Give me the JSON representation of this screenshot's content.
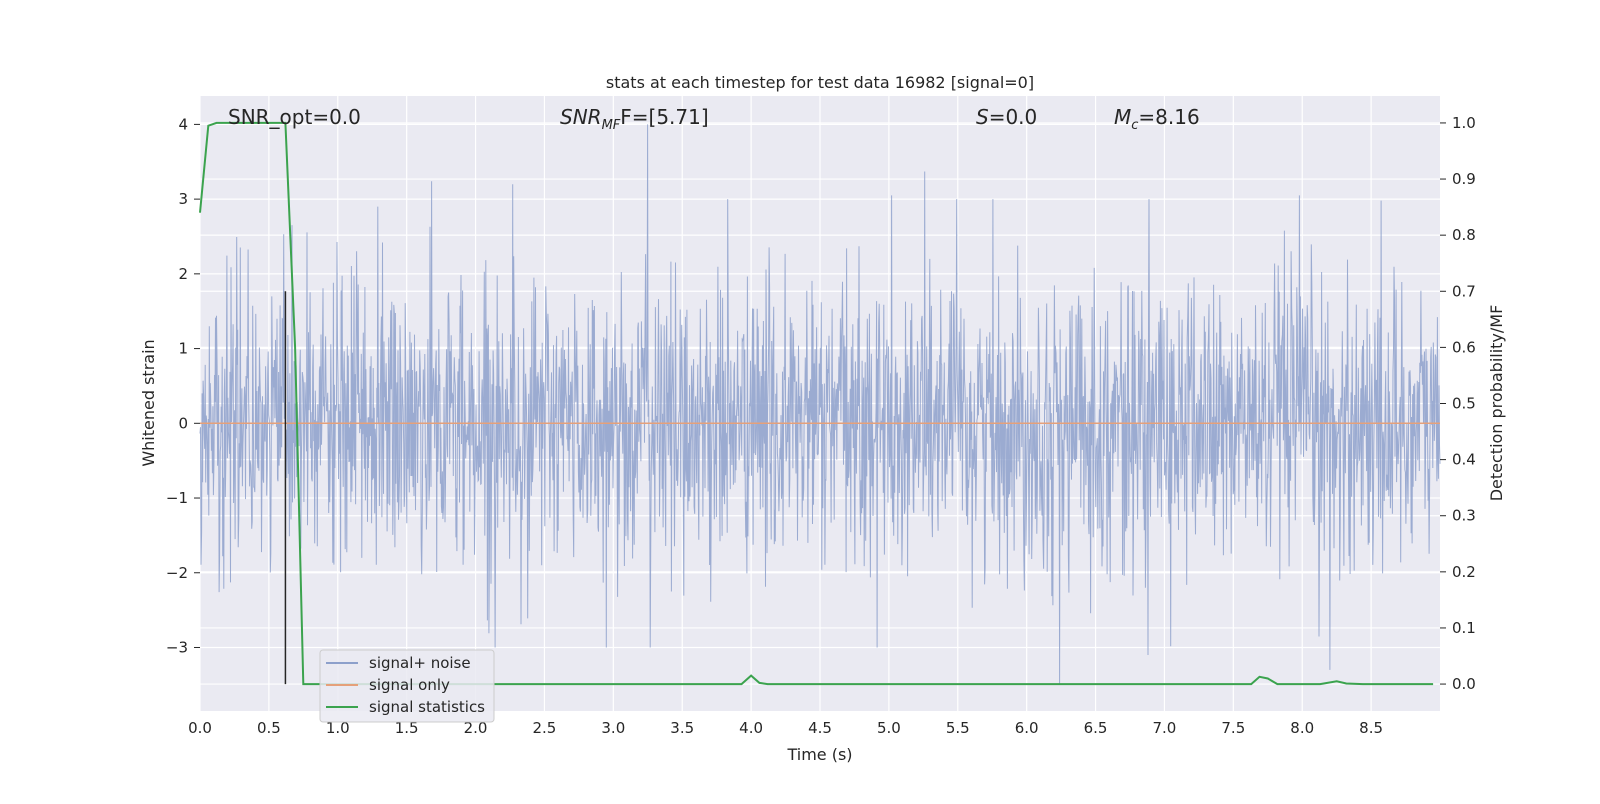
{
  "chart_data": {
    "type": "line",
    "title": "stats at each timestep for test data 16982 [signal=0]",
    "xlabel": "Time (s)",
    "ylabel_left": "Whitened strain",
    "ylabel_right": "Detection probability/MF",
    "xlim": [
      0.0,
      9.0
    ],
    "ylim_left": [
      -3.85,
      4.38
    ],
    "ylim_right": [
      -0.048,
      1.048
    ],
    "grid": true,
    "legend_position": "bottom-left",
    "x_ticks": [
      "0.0",
      "0.5",
      "1.0",
      "1.5",
      "2.0",
      "2.5",
      "3.0",
      "3.5",
      "4.0",
      "4.5",
      "5.0",
      "5.5",
      "6.0",
      "6.5",
      "7.0",
      "7.5",
      "8.0",
      "8.5"
    ],
    "y_ticks_left": [
      "4",
      "3",
      "2",
      "1",
      "0",
      "−1",
      "−2",
      "−3"
    ],
    "y_ticks_right": [
      "1.0",
      "0.9",
      "0.8",
      "0.7",
      "0.6",
      "0.5",
      "0.4",
      "0.3",
      "0.2",
      "0.1",
      "0.0"
    ],
    "annotations": {
      "snr_opt": "SNR_opt=0.0",
      "snr_mf_main": "SNR",
      "snr_mf_sub": "MF",
      "snr_mf_rest": "F=[5.71]",
      "s_main": "S",
      "s_rest": "=0.0",
      "mc_main": "M",
      "mc_sub": "c",
      "mc_rest": "=8.16"
    },
    "marker_line_x": 0.62,
    "series": [
      {
        "name": "signal+ noise",
        "axis": "left",
        "color": "#8da0cb",
        "description": "whitened strain noise, roughly gaussian with sigma about 1, spanning about -3.4 to 4.0",
        "peaks": [
          [
            3.25,
            4.0
          ],
          [
            5.26,
            3.37
          ],
          [
            1.68,
            3.24
          ],
          [
            2.27,
            3.2
          ],
          [
            5.02,
            3.05
          ],
          [
            7.98,
            3.05
          ],
          [
            1.29,
            2.9
          ],
          [
            6.24,
            -3.5
          ],
          [
            8.2,
            -3.3
          ],
          [
            6.88,
            -3.1
          ],
          [
            2.95,
            -3.0
          ]
        ]
      },
      {
        "name": "signal only",
        "axis": "left",
        "color": "#e5a07a",
        "x": [
          0.0,
          9.0
        ],
        "y": [
          0.0,
          0.0
        ]
      },
      {
        "name": "signal statistics",
        "axis": "right",
        "color": "#3ba34e",
        "x": [
          0.0,
          0.06,
          0.12,
          0.62,
          0.69,
          0.75,
          3.93,
          4.0,
          4.06,
          4.12,
          7.56,
          7.63,
          7.69,
          7.75,
          7.82,
          8.13,
          8.25,
          8.32,
          8.44,
          8.95
        ],
        "y": [
          0.84,
          0.995,
          1.0,
          1.0,
          0.6,
          0.0,
          0.0,
          0.015,
          0.002,
          0.0,
          0.0,
          0.0,
          0.013,
          0.01,
          0.0,
          0.0,
          0.005,
          0.001,
          0.0,
          0.0
        ]
      }
    ]
  }
}
